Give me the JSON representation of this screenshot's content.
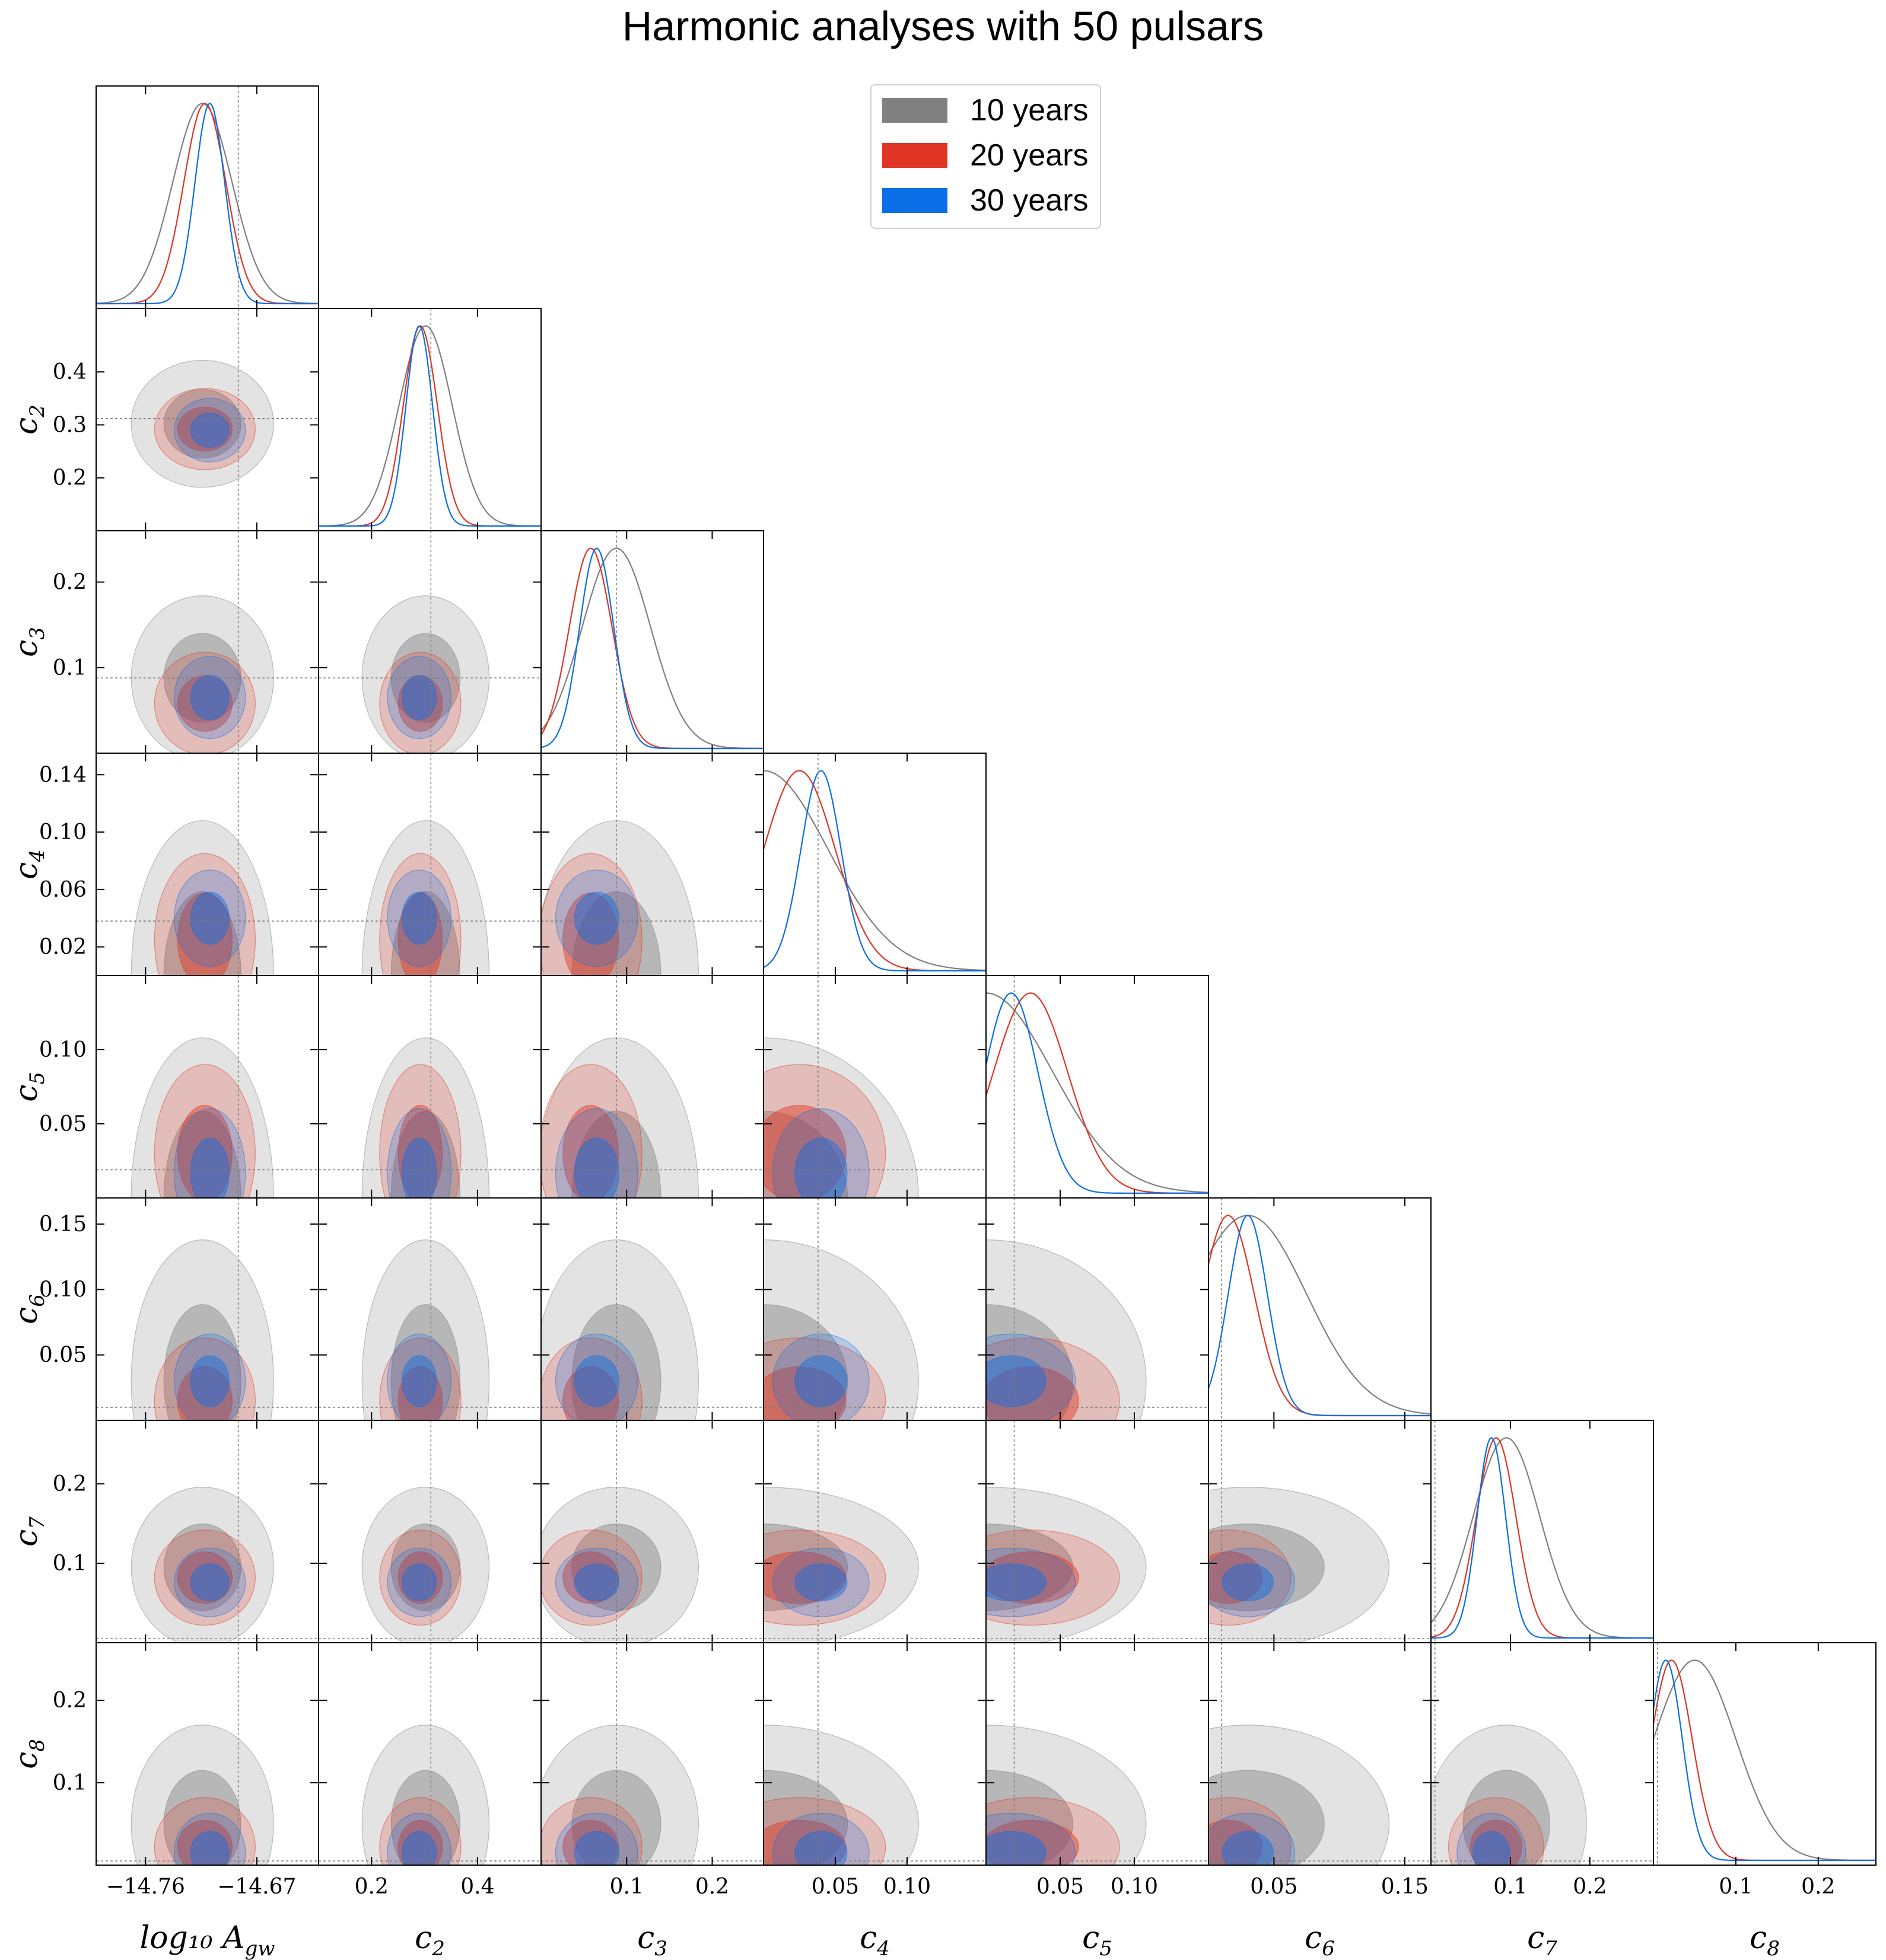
{
  "chart_data": {
    "type": "corner",
    "title": "Harmonic analyses with 50 pulsars",
    "parameters": [
      {
        "name": "log10_A_gw",
        "label": "log₁₀ A",
        "label_sub": "gw",
        "range": [
          -14.8,
          -14.62
        ],
        "truth": -14.685,
        "ticks": [
          -14.76,
          -14.67
        ],
        "tick_labels": [
          "−14.76",
          "−14.67"
        ],
        "y_ticks": [],
        "y_tick_labels": []
      },
      {
        "name": "c2",
        "label": "c",
        "label_sub": "2",
        "range": [
          0.1,
          0.52
        ],
        "truth": 0.312,
        "ticks": [
          0.2,
          0.4
        ],
        "tick_labels": [
          "0.2",
          "0.4"
        ],
        "y_ticks": [
          0.2,
          0.3,
          0.4
        ],
        "y_tick_labels": [
          "0.2",
          "0.3",
          "0.4"
        ]
      },
      {
        "name": "c3",
        "label": "c",
        "label_sub": "3",
        "range": [
          0.0,
          0.26
        ],
        "truth": 0.088,
        "ticks": [
          0.1,
          0.2
        ],
        "tick_labels": [
          "0.1",
          "0.2"
        ],
        "y_ticks": [
          0.1,
          0.2
        ],
        "y_tick_labels": [
          "0.1",
          "0.2"
        ]
      },
      {
        "name": "c4",
        "label": "c",
        "label_sub": "4",
        "range": [
          0.0,
          0.155
        ],
        "truth": 0.038,
        "ticks": [
          0.05,
          0.1
        ],
        "tick_labels": [
          "0.05",
          "0.10"
        ],
        "y_ticks": [
          0.02,
          0.06,
          0.1,
          0.14
        ],
        "y_tick_labels": [
          "0.02",
          "0.06",
          "0.10",
          "0.14"
        ]
      },
      {
        "name": "c5",
        "label": "c",
        "label_sub": "5",
        "range": [
          0.0,
          0.15
        ],
        "truth": 0.019,
        "ticks": [
          0.05,
          0.1
        ],
        "tick_labels": [
          "0.05",
          "0.10"
        ],
        "y_ticks": [
          0.05,
          0.1
        ],
        "y_tick_labels": [
          "0.05",
          "0.10"
        ]
      },
      {
        "name": "c6",
        "label": "c",
        "label_sub": "6",
        "range": [
          0.0,
          0.17
        ],
        "truth": 0.01,
        "ticks": [
          0.05,
          0.15
        ],
        "tick_labels": [
          "0.05",
          "0.15"
        ],
        "y_ticks": [
          0.05,
          0.1,
          0.15
        ],
        "y_tick_labels": [
          "0.05",
          "0.10",
          "0.15"
        ]
      },
      {
        "name": "c7",
        "label": "c",
        "label_sub": "7",
        "range": [
          0.0,
          0.28
        ],
        "truth": 0.005,
        "ticks": [
          0.1,
          0.2
        ],
        "tick_labels": [
          "0.1",
          "0.2"
        ],
        "y_ticks": [
          0.1,
          0.2
        ],
        "y_tick_labels": [
          "0.1",
          "0.2"
        ]
      },
      {
        "name": "c8",
        "label": "c",
        "label_sub": "8",
        "range": [
          0.0,
          0.27
        ],
        "truth": 0.005,
        "ticks": [
          0.1,
          0.2
        ],
        "tick_labels": [
          "0.1",
          "0.2"
        ],
        "y_ticks": [
          0.1,
          0.2
        ],
        "y_tick_labels": [
          "0.1",
          "0.2"
        ]
      }
    ],
    "series": [
      {
        "name": "10 years",
        "color": "#808080",
        "mean": [
          -14.714,
          0.302,
          0.088,
          0.0,
          0.0,
          0.03,
          0.095,
          0.05
        ],
        "sd": [
          0.024,
          0.05,
          0.04,
          0.045,
          0.045,
          0.045,
          0.042,
          0.05
        ]
      },
      {
        "name": "20 years",
        "color": "#e03524",
        "mean": [
          -14.712,
          0.292,
          0.058,
          0.025,
          0.03,
          0.015,
          0.082,
          0.022
        ],
        "sd": [
          0.017,
          0.032,
          0.025,
          0.025,
          0.025,
          0.02,
          0.025,
          0.025
        ]
      },
      {
        "name": "30 years",
        "color": "#0a6fe6",
        "mean": [
          -14.708,
          0.29,
          0.065,
          0.04,
          0.017,
          0.03,
          0.076,
          0.015
        ],
        "sd": [
          0.012,
          0.025,
          0.02,
          0.014,
          0.018,
          0.015,
          0.018,
          0.02
        ]
      }
    ],
    "legend": [
      "10 years",
      "20 years",
      "30 years"
    ],
    "legend_position": "top-center"
  }
}
